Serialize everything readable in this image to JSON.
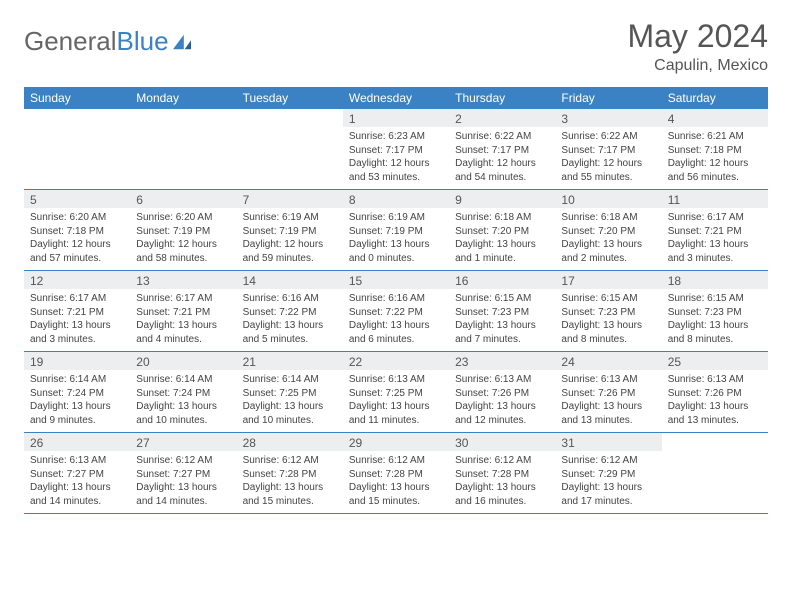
{
  "brand": {
    "part1": "General",
    "part2": "Blue"
  },
  "title": "May 2024",
  "location": "Capulin, Mexico",
  "colors": {
    "header_bg": "#3b82c4",
    "header_text": "#ffffff",
    "daynum_bg": "#eceef0",
    "cell_text": "#444444",
    "rule": "#3b82c4",
    "title_text": "#555555"
  },
  "fonts": {
    "title_size": 32,
    "location_size": 16,
    "dayheader_size": 12,
    "daynum_size": 12,
    "body_size": 10
  },
  "dayheaders": [
    "Sunday",
    "Monday",
    "Tuesday",
    "Wednesday",
    "Thursday",
    "Friday",
    "Saturday"
  ],
  "weeks": [
    [
      null,
      null,
      null,
      {
        "n": "1",
        "sr": "6:23 AM",
        "ss": "7:17 PM",
        "dl": "12 hours and 53 minutes."
      },
      {
        "n": "2",
        "sr": "6:22 AM",
        "ss": "7:17 PM",
        "dl": "12 hours and 54 minutes."
      },
      {
        "n": "3",
        "sr": "6:22 AM",
        "ss": "7:17 PM",
        "dl": "12 hours and 55 minutes."
      },
      {
        "n": "4",
        "sr": "6:21 AM",
        "ss": "7:18 PM",
        "dl": "12 hours and 56 minutes."
      }
    ],
    [
      {
        "n": "5",
        "sr": "6:20 AM",
        "ss": "7:18 PM",
        "dl": "12 hours and 57 minutes."
      },
      {
        "n": "6",
        "sr": "6:20 AM",
        "ss": "7:19 PM",
        "dl": "12 hours and 58 minutes."
      },
      {
        "n": "7",
        "sr": "6:19 AM",
        "ss": "7:19 PM",
        "dl": "12 hours and 59 minutes."
      },
      {
        "n": "8",
        "sr": "6:19 AM",
        "ss": "7:19 PM",
        "dl": "13 hours and 0 minutes."
      },
      {
        "n": "9",
        "sr": "6:18 AM",
        "ss": "7:20 PM",
        "dl": "13 hours and 1 minute."
      },
      {
        "n": "10",
        "sr": "6:18 AM",
        "ss": "7:20 PM",
        "dl": "13 hours and 2 minutes."
      },
      {
        "n": "11",
        "sr": "6:17 AM",
        "ss": "7:21 PM",
        "dl": "13 hours and 3 minutes."
      }
    ],
    [
      {
        "n": "12",
        "sr": "6:17 AM",
        "ss": "7:21 PM",
        "dl": "13 hours and 3 minutes."
      },
      {
        "n": "13",
        "sr": "6:17 AM",
        "ss": "7:21 PM",
        "dl": "13 hours and 4 minutes."
      },
      {
        "n": "14",
        "sr": "6:16 AM",
        "ss": "7:22 PM",
        "dl": "13 hours and 5 minutes."
      },
      {
        "n": "15",
        "sr": "6:16 AM",
        "ss": "7:22 PM",
        "dl": "13 hours and 6 minutes."
      },
      {
        "n": "16",
        "sr": "6:15 AM",
        "ss": "7:23 PM",
        "dl": "13 hours and 7 minutes."
      },
      {
        "n": "17",
        "sr": "6:15 AM",
        "ss": "7:23 PM",
        "dl": "13 hours and 8 minutes."
      },
      {
        "n": "18",
        "sr": "6:15 AM",
        "ss": "7:23 PM",
        "dl": "13 hours and 8 minutes."
      }
    ],
    [
      {
        "n": "19",
        "sr": "6:14 AM",
        "ss": "7:24 PM",
        "dl": "13 hours and 9 minutes."
      },
      {
        "n": "20",
        "sr": "6:14 AM",
        "ss": "7:24 PM",
        "dl": "13 hours and 10 minutes."
      },
      {
        "n": "21",
        "sr": "6:14 AM",
        "ss": "7:25 PM",
        "dl": "13 hours and 10 minutes."
      },
      {
        "n": "22",
        "sr": "6:13 AM",
        "ss": "7:25 PM",
        "dl": "13 hours and 11 minutes."
      },
      {
        "n": "23",
        "sr": "6:13 AM",
        "ss": "7:26 PM",
        "dl": "13 hours and 12 minutes."
      },
      {
        "n": "24",
        "sr": "6:13 AM",
        "ss": "7:26 PM",
        "dl": "13 hours and 13 minutes."
      },
      {
        "n": "25",
        "sr": "6:13 AM",
        "ss": "7:26 PM",
        "dl": "13 hours and 13 minutes."
      }
    ],
    [
      {
        "n": "26",
        "sr": "6:13 AM",
        "ss": "7:27 PM",
        "dl": "13 hours and 14 minutes."
      },
      {
        "n": "27",
        "sr": "6:12 AM",
        "ss": "7:27 PM",
        "dl": "13 hours and 14 minutes."
      },
      {
        "n": "28",
        "sr": "6:12 AM",
        "ss": "7:28 PM",
        "dl": "13 hours and 15 minutes."
      },
      {
        "n": "29",
        "sr": "6:12 AM",
        "ss": "7:28 PM",
        "dl": "13 hours and 15 minutes."
      },
      {
        "n": "30",
        "sr": "6:12 AM",
        "ss": "7:28 PM",
        "dl": "13 hours and 16 minutes."
      },
      {
        "n": "31",
        "sr": "6:12 AM",
        "ss": "7:29 PM",
        "dl": "13 hours and 17 minutes."
      },
      null
    ]
  ],
  "labels": {
    "sunrise": "Sunrise: ",
    "sunset": "Sunset: ",
    "daylight": "Daylight: "
  }
}
